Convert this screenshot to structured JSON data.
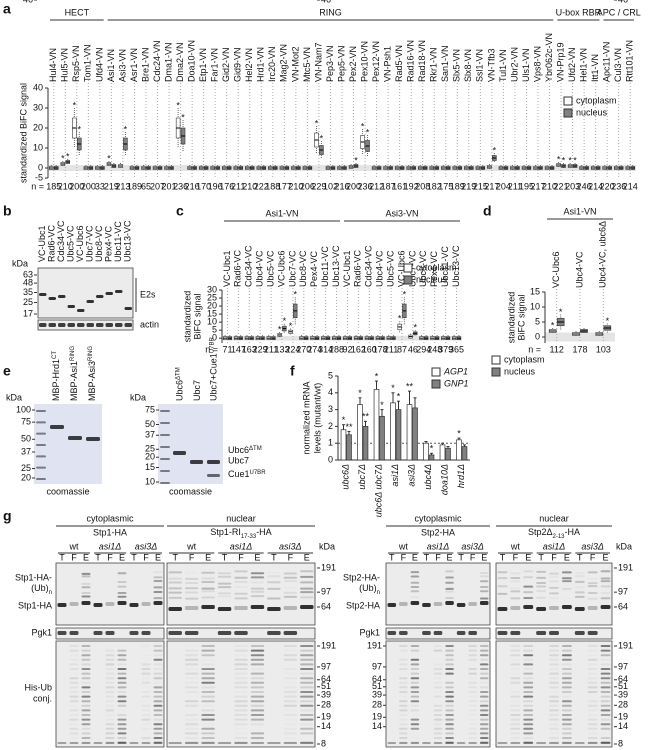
{
  "chart_data": [
    {
      "label": "a",
      "type": "box",
      "groups": [
        {
          "name": "HECT",
          "categories": [
            "Hul4-VN",
            "Hul5-VN",
            "Rsp5-VN",
            "Tom1-VN",
            "Ufd4-VN"
          ]
        },
        {
          "name": "RING",
          "categories": [
            "Asi1-VN",
            "Asi3-VN",
            "Asr1-VN",
            "Bre1-VN",
            "Cdc24-VN",
            "Dma1-VN",
            "Dma2-VN",
            "Doa10-VN",
            "Etp1-VN",
            "Far1-VN",
            "Gid2-VN",
            "Gid9-VN",
            "Hel2-VN",
            "Hrd1-VN",
            "Irc20-VN",
            "Mag2-VN",
            "VN-Mot2",
            "Mtc5-VN",
            "VN-Nam7",
            "Pep3-VN",
            "Pep5-VN",
            "Pex2-VN",
            "Pex10-VN",
            "Pex12-VN",
            "VN-Psh1",
            "Rad5-VN",
            "Rad16-VN",
            "Rad18-VN",
            "Rkr1-VN",
            "San1-VN",
            "Slx5-VN",
            "Slx8-VN",
            "Ssl1-VN",
            "VN-Tfb3",
            "Tul1-VN",
            "Ubr2-VN",
            "Uls1-VN",
            "Vps8-VN",
            "Ybr062c-VN"
          ]
        },
        {
          "name": "U-box RBR",
          "categories": [
            "VN-Prp19",
            "Ufd2-VN",
            "Hel1-VN",
            "Itt1-VN"
          ]
        },
        {
          "name": "APC / CRL",
          "categories": [
            "Apc11-VN",
            "Cul3-VN",
            "Rtt101-VN"
          ]
        }
      ],
      "ylabel": [
        "standardized BiFC signal"
      ],
      "ylim": [
        -5,
        40
      ],
      "yticks": [
        -5,
        0,
        10,
        20,
        30,
        40
      ],
      "n_label": "n =",
      "n": [
        185,
        210,
        200,
        200,
        33,
        219,
        213,
        189,
        65,
        207,
        201,
        236,
        216,
        170,
        196,
        176,
        211,
        210,
        222,
        188,
        177,
        210,
        206,
        229,
        102,
        216,
        200,
        236,
        212,
        187,
        161,
        192,
        208,
        182,
        175,
        189,
        219,
        215,
        217,
        204,
        211,
        195,
        217,
        210,
        221,
        203,
        246,
        214,
        220,
        236,
        214
      ],
      "significance_mark": "*",
      "legend": "upper right",
      "series": [
        {
          "name": "cytoplasm",
          "color": "#ffffff",
          "values": [
            0,
            2,
            20,
            0,
            0,
            2,
            1,
            0,
            0,
            0,
            0,
            20,
            0,
            0,
            0,
            0,
            0,
            0,
            0,
            0,
            0,
            0,
            0,
            14,
            0,
            0,
            0.5,
            13,
            0,
            0,
            0,
            0,
            0,
            0,
            0,
            0,
            0,
            0,
            0.5,
            0,
            0,
            0,
            0,
            0,
            1.5,
            1,
            0,
            0,
            0,
            0,
            0
          ],
          "significant": [
            1,
            2,
            5,
            11,
            23,
            27,
            44,
            45
          ]
        },
        {
          "name": "nucleus",
          "color": "#808080",
          "values": [
            0,
            3,
            12,
            0,
            0,
            1,
            12,
            0,
            0,
            0,
            0,
            16,
            0,
            0,
            0,
            0,
            0,
            0,
            0,
            0,
            0,
            0,
            0,
            9,
            0,
            0,
            1,
            11,
            0,
            0,
            0,
            0,
            0,
            0,
            0,
            0,
            0,
            0,
            5,
            0,
            0,
            0,
            0,
            0,
            1,
            1,
            0,
            0,
            0,
            0,
            0
          ],
          "significant": [
            1,
            2,
            6,
            11,
            23,
            26,
            27,
            38,
            44,
            45
          ]
        }
      ]
    },
    {
      "label": "c",
      "type": "box",
      "groups": [
        {
          "name": "Asi1-VN",
          "categories": [
            "VC-Ubc1",
            "Rad6-VC",
            "Cdc34-VC",
            "Ubc4-VC",
            "Ubc5-VC",
            "VC-Ubc6",
            "Ubc7-VC",
            "Ubc8-VC",
            "Pex4-VC",
            "Ubc11-VC",
            "Ubc13-VC"
          ]
        },
        {
          "name": "Asi3-VN",
          "categories": [
            "VC-Ubc1",
            "Rad6-VC",
            "Cdc34-VC",
            "Ubc4-VC",
            "Ubc5-VC",
            "VC-Ubc6",
            "Ubc7-VC",
            "Ubc8-VC",
            "Pex4-VC",
            "Ubc11-VC",
            "Ubc13-VC"
          ]
        }
      ],
      "ylabel": [
        "standardized",
        "BiFC signal"
      ],
      "ylim": [
        -3,
        30
      ],
      "yticks": [
        0,
        5,
        10,
        15,
        20,
        25,
        30
      ],
      "n_label": "n =",
      "n": [
        71,
        147,
        163,
        229,
        211,
        133,
        224,
        270,
        274,
        314,
        288,
        92,
        162,
        160,
        178,
        211,
        87,
        46,
        294,
        248,
        379,
        365
      ],
      "significance_mark": "*",
      "legend": "upper right",
      "series": [
        {
          "name": "cytoplasm",
          "color": "#ffffff",
          "values": [
            0,
            0,
            0,
            0,
            0,
            2,
            4,
            0,
            0,
            0,
            0,
            0,
            0,
            0,
            0,
            0,
            7,
            1,
            0,
            0,
            0,
            0
          ],
          "significant": [
            5,
            6,
            16
          ]
        },
        {
          "name": "nucleus",
          "color": "#808080",
          "values": [
            0,
            0,
            0,
            0,
            0,
            6,
            17,
            0,
            0,
            0,
            0,
            0,
            0,
            0,
            0,
            0,
            17,
            3,
            0,
            0,
            0,
            0
          ],
          "significant": [
            5,
            6,
            16,
            17
          ]
        }
      ]
    },
    {
      "label": "d",
      "type": "box",
      "groups": [
        {
          "name": "Asi1-VN",
          "categories": [
            "VC-Ubc6",
            "Ubc4-VC",
            "Ubc4-VC, ubc6Δ"
          ]
        }
      ],
      "ylabel": [
        "standardized",
        "BiFC signal"
      ],
      "ylim": [
        -2,
        15
      ],
      "yticks": [
        0,
        5,
        10,
        15
      ],
      "n_label": "n =",
      "n": [
        112,
        178,
        103
      ],
      "significance_mark": "*",
      "legend": "lower left",
      "series": [
        {
          "name": "cytoplasm",
          "color": "#ffffff",
          "values": [
            2,
            1,
            1
          ],
          "significant": [
            0
          ]
        },
        {
          "name": "nucleus",
          "color": "#808080",
          "values": [
            5,
            2,
            3
          ],
          "significant": [
            0,
            2
          ]
        }
      ]
    },
    {
      "label": "f",
      "type": "bar",
      "categories": [
        "ubc6Δ",
        "ubc7Δ",
        "ubc6Δ ubc7Δ",
        "asi1Δ",
        "asi3Δ",
        "ubc4Δ",
        "doa10Δ",
        "hrd1Δ"
      ],
      "ylabel": [
        "normalized mRNA",
        "levels (mutant/wt)"
      ],
      "ylim": [
        0,
        5
      ],
      "yticks": [
        0,
        1,
        2,
        3,
        4,
        5
      ],
      "legend": "upper right",
      "series": [
        {
          "name": "AGP1",
          "color": "#ffffff",
          "values": [
            1.8,
            3.3,
            4.2,
            3.4,
            3.3,
            1.0,
            0.9,
            1.2
          ],
          "errors": [
            0.3,
            0.4,
            0.5,
            0.6,
            0.8,
            0.1,
            0.1,
            0.1
          ],
          "stars": [
            "*",
            "*",
            "*",
            "*",
            "**",
            null,
            null,
            "*"
          ]
        },
        {
          "name": "GNP1",
          "color": "#808080",
          "values": [
            1.5,
            2.0,
            2.6,
            3.0,
            3.1,
            0.3,
            0.7,
            0.8
          ],
          "errors": [
            0.2,
            0.3,
            0.4,
            0.5,
            0.6,
            0.1,
            0.1,
            0.1
          ],
          "stars": [
            "**",
            "**",
            "*",
            "*",
            null,
            "*",
            null,
            null
          ]
        }
      ]
    }
  ],
  "blots": {
    "b": {
      "label": "b",
      "lanes": [
        "VC-Ubc1",
        "Rad6-VC",
        "Cdc34-VC",
        "Ubc5-VC",
        "VC-Ubc6",
        "Ubc7-VC",
        "Ubc8-VC",
        "Pex4-VC",
        "Ubc11-VC",
        "Ubc13-VC"
      ],
      "kda": "kDa",
      "markers": [
        63,
        48,
        35,
        25,
        17
      ],
      "actin_marker": [
        46
      ],
      "labels": [
        "E2s",
        "actin"
      ]
    },
    "e": {
      "label": "e",
      "left": {
        "lanes": [
          {
            "text": "MBP-Hrd1",
            "sup": "CT"
          },
          {
            "text": "MBP-Asi1",
            "sup": "RING"
          },
          {
            "text": "MBP-Asi3",
            "sup": "RING"
          }
        ],
        "markers": [
          100,
          75,
          50,
          37,
          25,
          20
        ]
      },
      "right": {
        "lanes": [
          {
            "text": "Ubc6",
            "sup": "ΔTM"
          },
          "Ubc7",
          {
            "text": "Ubc7+Cue1",
            "sup": "U7BR"
          }
        ],
        "markers": [
          75,
          50,
          37,
          25,
          20,
          15,
          10
        ],
        "bands": [
          {
            "text": "Ubc6",
            "sup": "ΔTM"
          },
          "Ubc7",
          {
            "text": "Cue1",
            "sup": "U7BR"
          }
        ]
      },
      "kda": "kDa",
      "stain": "coomassie"
    },
    "g": {
      "label": "g",
      "compartments": [
        "cytoplasmic",
        "nuclear"
      ],
      "genotypes": [
        "wt",
        "asi1Δ",
        "asi3Δ"
      ],
      "lanes": [
        "T",
        "F",
        "E"
      ],
      "kda": "kDa",
      "left": {
        "constructs": [
          "Stp1-HA",
          {
            "text": "Stp1-RI",
            "sub": "17-33",
            "rest": "-HA"
          }
        ],
        "ub_label": [
          "Stp1-HA-",
          {
            "text": "(Ub)",
            "sub": "n"
          }
        ],
        "band_label": "Stp1-HA"
      },
      "right": {
        "constructs": [
          "Stp2-HA",
          {
            "text": "Stp2Δ",
            "sub": "2-13",
            "rest": "-HA"
          }
        ],
        "ub_label": [
          "Stp2-HA-",
          {
            "text": "(Ub)",
            "sub": "n"
          }
        ],
        "band_label": "Stp2-HA"
      },
      "loading": "Pgk1",
      "conj_label": [
        "His-Ub",
        "conj."
      ],
      "markers_top": [
        191,
        97,
        64
      ],
      "marker_pgk": [
        46
      ],
      "markers_bottom": [
        191,
        97,
        64,
        51,
        39,
        28,
        19,
        14,
        8
      ],
      "inner_markers": [
        191,
        97,
        64,
        51,
        39,
        28,
        19,
        14
      ]
    }
  }
}
